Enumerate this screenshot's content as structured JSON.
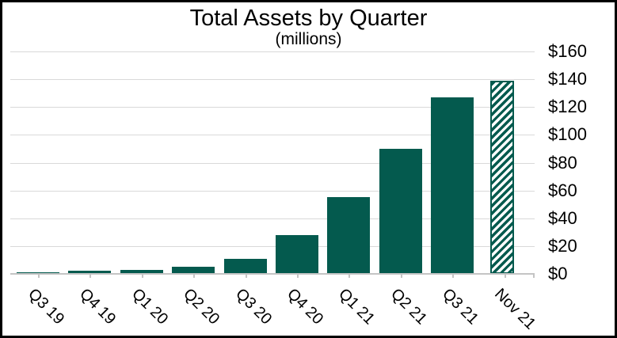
{
  "chart_data": {
    "type": "bar",
    "title": "Total Assets by Quarter",
    "subtitle": "(millions)",
    "categories": [
      "Q3 19",
      "Q4 19",
      "Q1 20",
      "Q2 20",
      "Q3 20",
      "Q4 20",
      "Q1 21",
      "Q2 21",
      "Q3 21",
      "Nov 21"
    ],
    "values": [
      1,
      2,
      3,
      5,
      11,
      28,
      55,
      90,
      127,
      139
    ],
    "last_bar_hatched": true,
    "hatch_style": "diagonal-stripes-45deg",
    "y_tick_values": [
      0,
      20,
      40,
      60,
      80,
      100,
      120,
      140,
      160
    ],
    "y_tick_labels": [
      "$0",
      "$20",
      "$40",
      "$60",
      "$80",
      "$100",
      "$120",
      "$140",
      "$160"
    ],
    "y_axis_side": "right",
    "ylim": [
      0,
      160
    ],
    "grid": true,
    "legend": "none",
    "colors": {
      "bar": "#045a4e",
      "hatch_background": "#ffffff",
      "gridline": "#d9d9d9",
      "axis": "#c4c4c4",
      "text": "#000000",
      "frame_border": "#000000",
      "background": "#ffffff"
    }
  }
}
